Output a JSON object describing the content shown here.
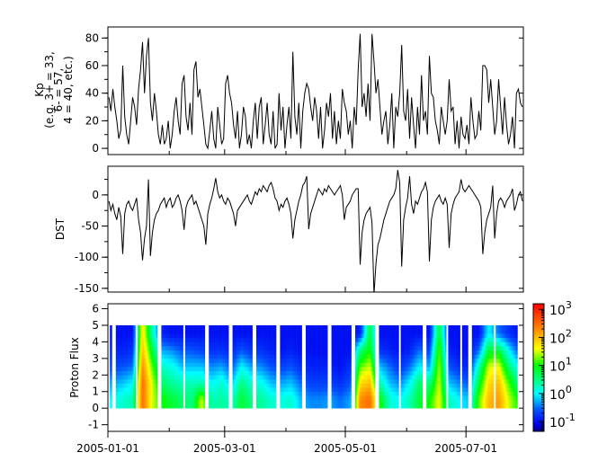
{
  "chart_data": [
    {
      "type": "line",
      "panel": "kp",
      "ylabel_lines": [
        "Kp",
        "(e.g. 3+ = 33,",
        "6- = 57,",
        "4 = 40, etc.)"
      ],
      "ylim": [
        -4.5,
        88
      ],
      "yticks": [
        0,
        20,
        40,
        60,
        80
      ],
      "ytick_labels": [
        "0",
        "20",
        "40",
        "60",
        "80"
      ],
      "start_date": "2005-01-01",
      "step_days": 1,
      "values": [
        37,
        27,
        43,
        30,
        20,
        7,
        13,
        60,
        23,
        10,
        3,
        20,
        37,
        30,
        17,
        43,
        57,
        77,
        40,
        67,
        80,
        33,
        20,
        40,
        27,
        10,
        3,
        17,
        3,
        7,
        20,
        0,
        10,
        27,
        37,
        20,
        10,
        47,
        53,
        23,
        13,
        33,
        10,
        57,
        63,
        37,
        43,
        30,
        17,
        3,
        0,
        13,
        27,
        7,
        0,
        30,
        17,
        3,
        7,
        47,
        53,
        40,
        33,
        17,
        7,
        27,
        0,
        10,
        30,
        23,
        3,
        10,
        0,
        20,
        33,
        7,
        30,
        37,
        3,
        17,
        33,
        10,
        3,
        27,
        0,
        3,
        40,
        13,
        30,
        0,
        17,
        30,
        7,
        70,
        23,
        10,
        33,
        0,
        27,
        40,
        47,
        43,
        30,
        20,
        37,
        27,
        7,
        30,
        0,
        13,
        33,
        23,
        40,
        7,
        27,
        3,
        20,
        7,
        43,
        33,
        27,
        10,
        20,
        0,
        30,
        17,
        57,
        83,
        30,
        40,
        23,
        47,
        20,
        83,
        63,
        40,
        50,
        30,
        10,
        20,
        27,
        3,
        17,
        40,
        0,
        30,
        23,
        40,
        75,
        27,
        20,
        43,
        7,
        37,
        17,
        0,
        30,
        10,
        53,
        20,
        27,
        10,
        67,
        40,
        37,
        20,
        13,
        3,
        30,
        20,
        10,
        20,
        50,
        27,
        30,
        3,
        20,
        0,
        23,
        10,
        7,
        17,
        3,
        37,
        20,
        7,
        10,
        27,
        13,
        60,
        60,
        57,
        33,
        50,
        30,
        10,
        20,
        50,
        30,
        10,
        37,
        17,
        3,
        10,
        23,
        0,
        40,
        43,
        33,
        30
      ]
    },
    {
      "type": "line",
      "panel": "dst",
      "ylabel": "DST",
      "ylim": [
        -156,
        46
      ],
      "yticks": [
        0,
        -50,
        -100,
        -150
      ],
      "ytick_labels": [
        "0",
        "-50",
        "-100",
        "-150"
      ],
      "start_date": "2005-01-01",
      "step_days": 1,
      "values": [
        -10,
        -25,
        -15,
        -30,
        -40,
        -20,
        -35,
        -95,
        -30,
        -15,
        -10,
        -20,
        -25,
        -15,
        -5,
        -40,
        -60,
        -105,
        -70,
        -50,
        25,
        -98,
        -60,
        -40,
        -30,
        -25,
        -15,
        -10,
        -5,
        -20,
        -10,
        -5,
        -20,
        -15,
        -5,
        0,
        -10,
        -25,
        -56,
        -20,
        -10,
        -5,
        0,
        -15,
        -10,
        -20,
        -30,
        -40,
        -50,
        -80,
        -30,
        -15,
        -5,
        10,
        27,
        5,
        -5,
        0,
        -10,
        -15,
        -5,
        -10,
        -20,
        -30,
        -50,
        -25,
        -20,
        -15,
        -10,
        -5,
        0,
        -10,
        -15,
        -5,
        5,
        0,
        10,
        5,
        15,
        10,
        5,
        15,
        20,
        10,
        -5,
        -10,
        -25,
        -15,
        -20,
        -10,
        -5,
        -15,
        -30,
        -70,
        -40,
        -25,
        -10,
        0,
        15,
        20,
        30,
        -55,
        -30,
        -20,
        -10,
        0,
        10,
        5,
        0,
        10,
        5,
        15,
        10,
        5,
        0,
        5,
        10,
        15,
        0,
        -40,
        -20,
        -15,
        -10,
        0,
        5,
        10,
        10,
        -112,
        -60,
        -40,
        -30,
        -25,
        -20,
        -45,
        -160,
        -110,
        -80,
        -70,
        -55,
        -40,
        -30,
        -20,
        -10,
        -5,
        0,
        10,
        40,
        20,
        -115,
        -40,
        -20,
        -5,
        30,
        -15,
        -30,
        -10,
        -15,
        -5,
        5,
        10,
        20,
        5,
        -107,
        -40,
        -20,
        -10,
        -5,
        0,
        -10,
        -15,
        -5,
        -15,
        -85,
        -30,
        -15,
        -5,
        0,
        5,
        25,
        10,
        5,
        10,
        15,
        10,
        5,
        0,
        -5,
        -10,
        -20,
        -95,
        -60,
        -40,
        -30,
        -20,
        15,
        -70,
        -30,
        -10,
        -5,
        -10,
        -20,
        -10,
        -5,
        0,
        10,
        -25,
        -15,
        0,
        5,
        -10
      ]
    },
    {
      "type": "heatmap",
      "panel": "proton",
      "ylabel": "Proton Flux",
      "ylim": [
        -1.4,
        6.3
      ],
      "yticks": [
        -1,
        0,
        1,
        2,
        3,
        4,
        5,
        6
      ],
      "ytick_labels": [
        "-1",
        "0",
        "1",
        "2",
        "3",
        "4",
        "5",
        "6"
      ],
      "y_range_data": [
        0,
        5
      ],
      "y_bin_centers": [
        0.5,
        1.5,
        2.5,
        3.5,
        4.5
      ],
      "start_date": "2005-01-01",
      "time_step_days": 5,
      "value_scale": "log10",
      "log10_values": [
        [
          0,
          -0.3,
          -0.7,
          -0.9,
          -1
        ],
        [
          0.2,
          -0.2,
          -0.6,
          -0.9,
          -1
        ],
        [
          0.3,
          0,
          -0.5,
          -0.8,
          -1
        ],
        [
          2.5,
          2.5,
          2.3,
          2,
          1.8
        ],
        [
          1.5,
          1.5,
          1.2,
          0.8,
          0.3
        ],
        [
          1.0,
          0.6,
          0.2,
          -0.3,
          -0.9
        ],
        [
          0.8,
          0.4,
          0.1,
          -0.4,
          -1
        ],
        [
          0.6,
          0.3,
          -0.2,
          -0.6,
          -1
        ],
        [
          0.5,
          0.3,
          -0.2,
          -0.6,
          -1
        ],
        [
          1.5,
          0.3,
          -0.2,
          -0.7,
          -1
        ],
        [
          0.3,
          0,
          -0.4,
          -0.8,
          -1
        ],
        [
          0.4,
          0.2,
          -0.3,
          -0.8,
          -1
        ],
        [
          0.2,
          -0.2,
          -0.6,
          -0.9,
          -1
        ],
        [
          0.8,
          0.5,
          0,
          -0.6,
          -1
        ],
        [
          0.5,
          0.2,
          -0.3,
          -0.8,
          -1
        ],
        [
          0.4,
          0.1,
          -0.4,
          -0.8,
          -1
        ],
        [
          0.2,
          -0.2,
          -0.6,
          -0.9,
          -1
        ],
        [
          0.1,
          -0.3,
          -0.7,
          -1,
          -1
        ],
        [
          0.2,
          -0.2,
          -0.6,
          -0.9,
          -1
        ],
        [
          -0.2,
          -0.5,
          -0.8,
          -1,
          -1
        ],
        [
          -0.4,
          -0.7,
          -0.9,
          -1,
          -1
        ],
        [
          -0.4,
          -0.7,
          -0.9,
          -1,
          -1
        ],
        [
          -0.3,
          -0.7,
          -0.9,
          -1,
          -1
        ],
        [
          -0.5,
          -0.8,
          -1,
          -1,
          -1
        ],
        [
          -0.3,
          -0.6,
          -0.8,
          -1,
          -1
        ],
        [
          2.3,
          1.8,
          1.2,
          0.5,
          -0.9
        ],
        [
          2.5,
          2.0,
          1.5,
          1.0,
          0.8
        ],
        [
          1.0,
          0.3,
          -0.2,
          -0.8,
          -1
        ],
        [
          0.2,
          -0.2,
          -0.5,
          -0.9,
          -1
        ],
        [
          0,
          -0.4,
          -0.8,
          -1,
          -1
        ],
        [
          0.3,
          0,
          -0.5,
          -0.9,
          -1
        ],
        [
          0.8,
          0.6,
          0,
          -0.5,
          -1
        ],
        [
          1.0,
          0.5,
          -0.3,
          -0.7,
          -1
        ],
        [
          1.6,
          1.5,
          1.4,
          1.2,
          0.8
        ],
        [
          0.3,
          -0.2,
          -0.6,
          -0.9,
          -1
        ],
        [
          0,
          -0.4,
          -0.8,
          -1,
          -1
        ],
        [
          -0.2,
          -0.6,
          -0.9,
          -1,
          -1
        ],
        [
          1.2,
          0.8,
          0.3,
          -0.5,
          -1
        ],
        [
          2.0,
          1.8,
          1.5,
          0.8,
          0
        ],
        [
          2.2,
          2.0,
          1.6,
          0.8,
          -0.5
        ],
        [
          1.5,
          1.2,
          0.6,
          0,
          -0.8
        ],
        [
          1.0,
          0.5,
          0,
          -0.6,
          -1
        ]
      ],
      "data_coverage": [
        [
          "2005-01-02",
          "2005-01-03"
        ],
        [
          "2005-01-05",
          "2005-01-15"
        ],
        [
          "2005-01-16",
          "2005-01-26"
        ],
        [
          "2005-01-28",
          "2005-02-08"
        ],
        [
          "2005-02-09",
          "2005-02-19"
        ],
        [
          "2005-02-21",
          "2005-03-03"
        ],
        [
          "2005-03-05",
          "2005-03-15"
        ],
        [
          "2005-03-17",
          "2005-03-27"
        ],
        [
          "2005-03-29",
          "2005-04-09"
        ],
        [
          "2005-04-11",
          "2005-04-22"
        ],
        [
          "2005-04-24",
          "2005-05-04"
        ],
        [
          "2005-05-06",
          "2005-05-16"
        ],
        [
          "2005-05-18",
          "2005-05-28"
        ],
        [
          "2005-05-29",
          "2005-06-09"
        ],
        [
          "2005-06-11",
          "2005-06-21"
        ],
        [
          "2005-06-22",
          "2005-06-28"
        ],
        [
          "2005-06-29",
          "2005-07-02"
        ],
        [
          "2005-07-04",
          "2005-07-15"
        ],
        [
          "2005-07-16",
          "2005-07-27"
        ]
      ],
      "colorbar": {
        "scale": "log",
        "range_log10": [
          -1.35,
          3.2
        ],
        "colormap": "rainbow (jet)",
        "base": "10",
        "exponents": [
          "3",
          "2",
          "1",
          "0",
          "-1"
        ],
        "exponent_values": [
          3,
          2,
          1,
          0,
          -1
        ],
        "colors": [
          "#00007f",
          "#0000f0",
          "#0050ff",
          "#00ffff",
          "#00ff00",
          "#ffff00",
          "#ff9900",
          "#ff0000"
        ]
      }
    }
  ],
  "x_axis": {
    "range": [
      "2005-01-01",
      "2005-07-30"
    ],
    "major_ticks": [
      "2005-01-01",
      "2005-03-01",
      "2005-05-01",
      "2005-07-01"
    ],
    "major_tick_labels": [
      "2005-01-01",
      "2005-03-01",
      "2005-05-01",
      "2005-07-01"
    ],
    "minor_ticks": [
      "2005-02-01",
      "2005-04-01",
      "2005-06-01"
    ]
  }
}
